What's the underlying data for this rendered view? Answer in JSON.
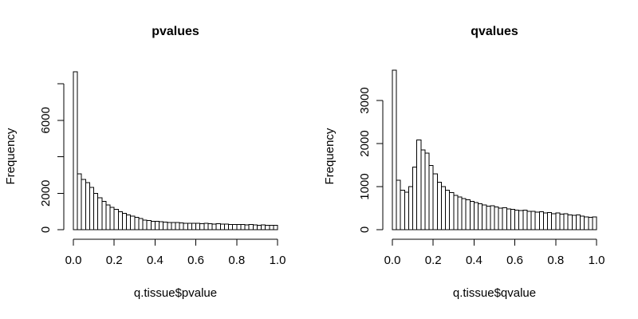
{
  "figure": {
    "background": "#ffffff",
    "foreground": "#000000",
    "description": "Two side-by-side R base-graphics histograms"
  },
  "chart_data": [
    {
      "type": "bar",
      "subtype": "histogram",
      "title": "pvalues",
      "xlabel": "q.tissue$pvalue",
      "ylabel": "Frequency",
      "bin_start": 0,
      "bin_width": 0.02,
      "xlim": [
        0,
        1
      ],
      "ylim": [
        0,
        8000
      ],
      "grid": false,
      "legend": "none",
      "bar_fill": "#ffffff",
      "bar_stroke": "#000000",
      "x_ticks": [
        0,
        0.2,
        0.4,
        0.6,
        0.8,
        1
      ],
      "x_tick_labels": [
        "0.0",
        "0.2",
        "0.4",
        "0.6",
        "0.8",
        "1.0"
      ],
      "y_ticks": [
        0,
        2000,
        4000,
        6000,
        8000
      ],
      "y_tick_labels": [
        "0",
        "2000",
        "",
        "6000",
        ""
      ],
      "values": [
        8650,
        3050,
        2760,
        2580,
        2320,
        2000,
        1750,
        1550,
        1350,
        1220,
        1110,
        980,
        890,
        810,
        750,
        670,
        610,
        530,
        500,
        470,
        450,
        430,
        420,
        400,
        390,
        395,
        375,
        360,
        350,
        360,
        340,
        330,
        345,
        320,
        310,
        320,
        300,
        310,
        290,
        295,
        280,
        285,
        270,
        275,
        260,
        250,
        265,
        245,
        240,
        230
      ]
    },
    {
      "type": "bar",
      "subtype": "histogram",
      "title": "qvalues",
      "xlabel": "q.tissue$qvalue",
      "ylabel": "Frequency",
      "bin_start": 0,
      "bin_width": 0.02,
      "xlim": [
        0,
        1
      ],
      "ylim": [
        0,
        3000
      ],
      "grid": false,
      "legend": "none",
      "bar_fill": "#ffffff",
      "bar_stroke": "#000000",
      "x_ticks": [
        0,
        0.2,
        0.4,
        0.6,
        0.8,
        1
      ],
      "x_tick_labels": [
        "0.0",
        "0.2",
        "0.4",
        "0.6",
        "0.8",
        "1.0"
      ],
      "y_ticks": [
        0,
        1000,
        2000,
        3000
      ],
      "y_tick_labels": [
        "0",
        "1000",
        "2000",
        "3000"
      ],
      "values": [
        3700,
        1150,
        920,
        870,
        1000,
        1450,
        2080,
        1850,
        1780,
        1490,
        1300,
        1100,
        1000,
        920,
        860,
        800,
        760,
        720,
        690,
        660,
        630,
        600,
        575,
        550,
        560,
        525,
        500,
        510,
        480,
        470,
        455,
        440,
        455,
        425,
        430,
        405,
        415,
        390,
        400,
        375,
        385,
        360,
        370,
        345,
        330,
        340,
        315,
        300,
        285,
        300
      ]
    }
  ]
}
